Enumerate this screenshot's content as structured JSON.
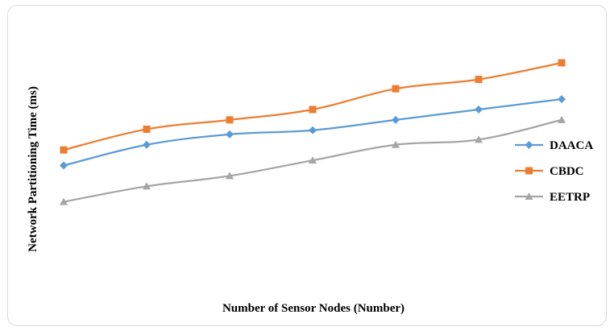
{
  "chart_data": {
    "type": "line",
    "xlabel": "Number of Sensor Nodes (Number)",
    "ylabel": "Network Partitioning Time (ms)",
    "x_tick_labels_shown": false,
    "y_tick_labels_shown": false,
    "grid": false,
    "legend_position": "right",
    "smoothed": true,
    "x": [
      1,
      2,
      3,
      4,
      5,
      6,
      7
    ],
    "ylim": [
      0,
      13
    ],
    "series": [
      {
        "name": "DAACA",
        "color": "#5b9bd5",
        "marker": "diamond",
        "values": [
          5.8,
          6.8,
          7.3,
          7.5,
          8.0,
          8.5,
          9.0
        ]
      },
      {
        "name": "CBDC",
        "color": "#ed7d31",
        "marker": "square",
        "values": [
          6.55,
          7.55,
          8.0,
          8.5,
          9.5,
          9.95,
          10.75
        ]
      },
      {
        "name": "EETRP",
        "color": "#a5a5a5",
        "marker": "triangle",
        "values": [
          4.05,
          4.8,
          5.3,
          6.05,
          6.8,
          7.05,
          8.0
        ]
      }
    ]
  }
}
